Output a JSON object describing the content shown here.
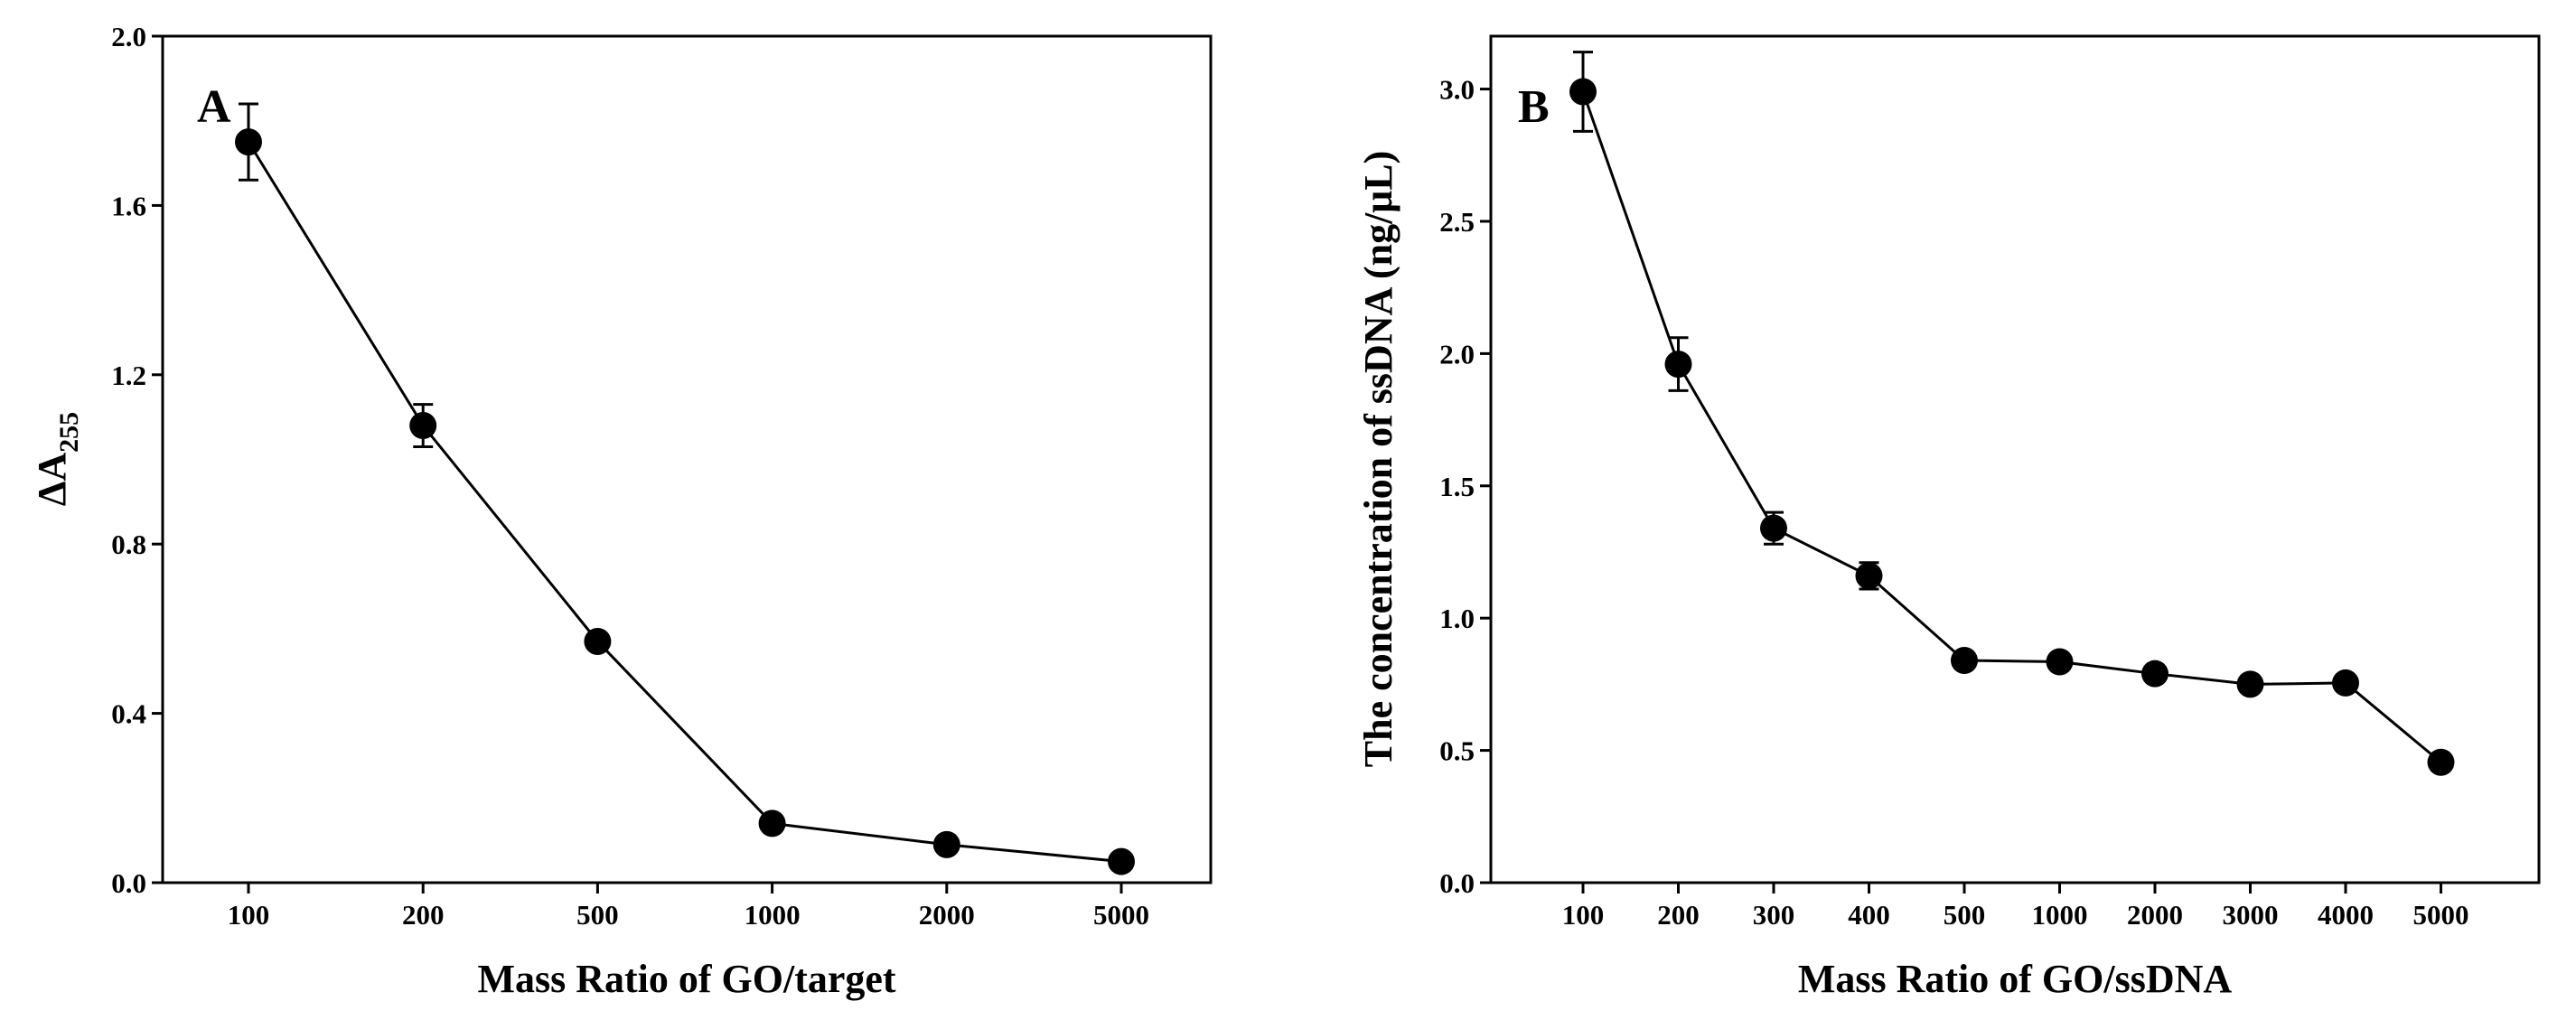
{
  "chart_data": [
    {
      "type": "line",
      "panel_label": "A",
      "title": "",
      "xlabel": "Mass Ratio of GO/target",
      "ylabel_main": "ΔA",
      "ylabel_sub": "255",
      "categories": [
        "100",
        "200",
        "500",
        "1000",
        "2000",
        "5000"
      ],
      "values": [
        1.75,
        1.08,
        0.57,
        0.14,
        0.09,
        0.05
      ],
      "errors": [
        0.09,
        0.05,
        0.02,
        0.01,
        0.01,
        0.01
      ],
      "ylim": [
        0,
        2.0
      ],
      "yticks": [
        "0.0",
        "0.4",
        "0.8",
        "1.2",
        "1.6",
        "2.0"
      ],
      "grid": false
    },
    {
      "type": "line",
      "panel_label": "B",
      "title": "",
      "xlabel": "Mass Ratio of GO/ssDNA",
      "ylabel_main": "The concentration of ssDNA (ng/μL)",
      "ylabel_sub": "",
      "categories": [
        "100",
        "200",
        "300",
        "400",
        "500",
        "1000",
        "2000",
        "3000",
        "4000",
        "5000"
      ],
      "values": [
        2.99,
        1.96,
        1.34,
        1.16,
        0.84,
        0.835,
        0.79,
        0.75,
        0.755,
        0.455
      ],
      "errors": [
        0.15,
        0.1,
        0.06,
        0.05,
        0.03,
        0.03,
        0.03,
        0.02,
        0.02,
        0.02
      ],
      "ylim": [
        0,
        3.2
      ],
      "yticks": [
        "0.0",
        "0.5",
        "1.0",
        "1.5",
        "2.0",
        "2.5",
        "3.0"
      ],
      "grid": false
    }
  ]
}
